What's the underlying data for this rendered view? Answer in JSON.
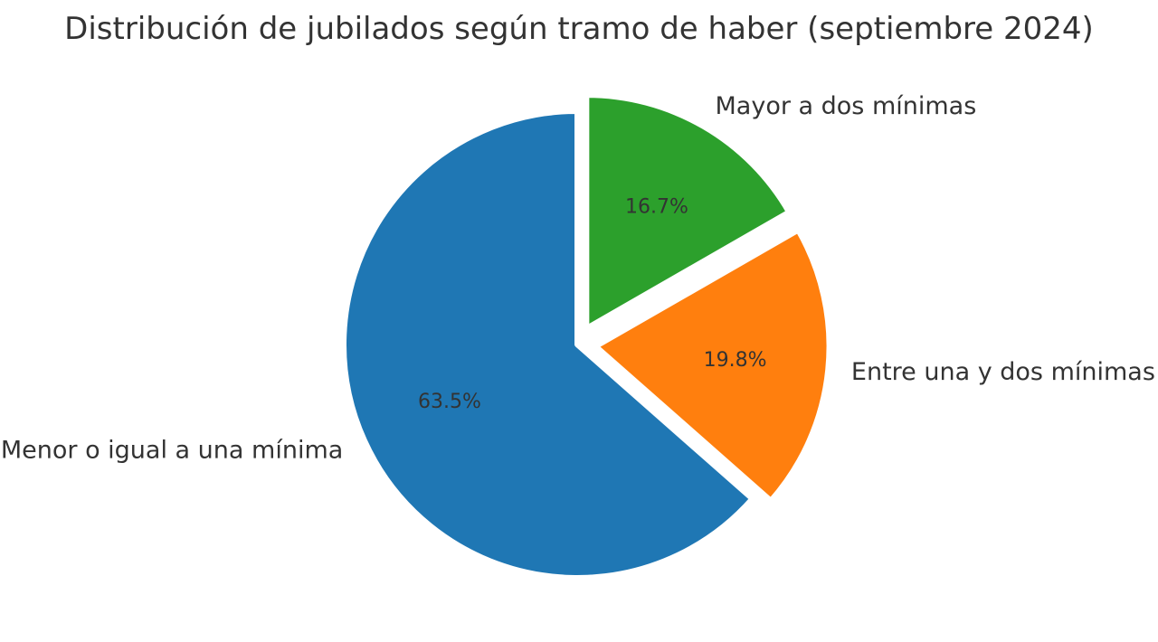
{
  "title": "Distribución de jubilados según tramo de haber (septiembre 2024)",
  "chart_data": {
    "type": "pie",
    "title": "Distribución de jubilados según tramo de haber (septiembre 2024)",
    "categories": [
      "Menor o igual a una mínima",
      "Entre una y dos mínimas",
      "Mayor a dos mínimas"
    ],
    "values": [
      63.5,
      19.8,
      16.7
    ],
    "slices": [
      {
        "label": "Menor o igual a una mínima",
        "value": 63.5,
        "pct_label": "63.5%",
        "color": "#1f77b4",
        "explode": 0.0
      },
      {
        "label": "Entre una y dos mínimas",
        "value": 19.8,
        "pct_label": "19.8%",
        "color": "#ff7f0e",
        "explode": 0.08
      },
      {
        "label": "Mayor a dos mínimas",
        "value": 16.7,
        "pct_label": "16.7%",
        "color": "#2ca02c",
        "explode": 0.08
      }
    ],
    "start_angle": 90,
    "counterclock": true,
    "label_distance": 1.1,
    "pct_distance": 0.6,
    "edge_color": "#ffffff",
    "text_color": "#333333",
    "background": "#ffffff",
    "legend": "none",
    "grid": false
  }
}
